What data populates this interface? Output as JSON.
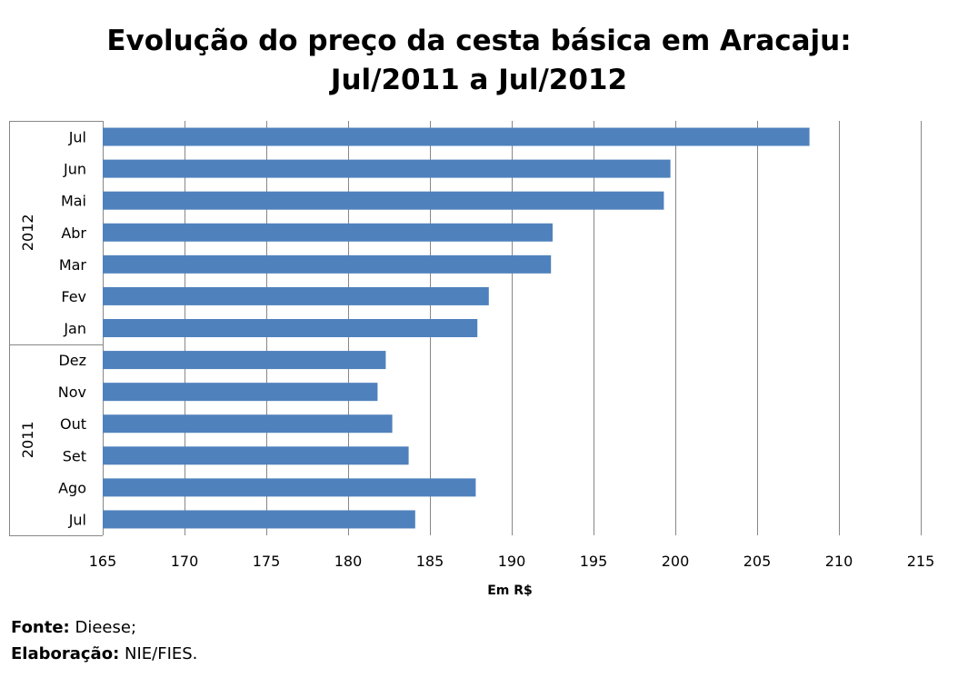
{
  "chart_data": {
    "type": "bar",
    "orientation": "horizontal",
    "title_line1": "Evolução do preço da cesta básica em Aracaju:",
    "title_line2": "Jul/2011 a Jul/2012",
    "xlabel": "Em R$",
    "ylabel": "",
    "xlim": [
      165,
      215
    ],
    "xticks": [
      165,
      170,
      175,
      180,
      185,
      190,
      195,
      200,
      205,
      210,
      215
    ],
    "grid": true,
    "legend": "none",
    "bar_color": "#4f81bd",
    "categories": [
      {
        "group": "2011",
        "label": "Jul",
        "value": 184.1
      },
      {
        "group": "2011",
        "label": "Ago",
        "value": 187.8
      },
      {
        "group": "2011",
        "label": "Set",
        "value": 183.7
      },
      {
        "group": "2011",
        "label": "Out",
        "value": 182.7
      },
      {
        "group": "2011",
        "label": "Nov",
        "value": 181.8
      },
      {
        "group": "2011",
        "label": "Dez",
        "value": 182.3
      },
      {
        "group": "2012",
        "label": "Jan",
        "value": 187.9
      },
      {
        "group": "2012",
        "label": "Fev",
        "value": 188.6
      },
      {
        "group": "2012",
        "label": "Mar",
        "value": 192.4
      },
      {
        "group": "2012",
        "label": "Abr",
        "value": 192.5
      },
      {
        "group": "2012",
        "label": "Mai",
        "value": 199.3
      },
      {
        "group": "2012",
        "label": "Jun",
        "value": 199.7
      },
      {
        "group": "2012",
        "label": "Jul",
        "value": 208.2
      }
    ],
    "groups": [
      "2011",
      "2012"
    ]
  },
  "footer": {
    "source_label": "Fonte:",
    "source_value": " Dieese;",
    "made_label": "Elaboração:",
    "made_value": " NIE/FIES."
  }
}
